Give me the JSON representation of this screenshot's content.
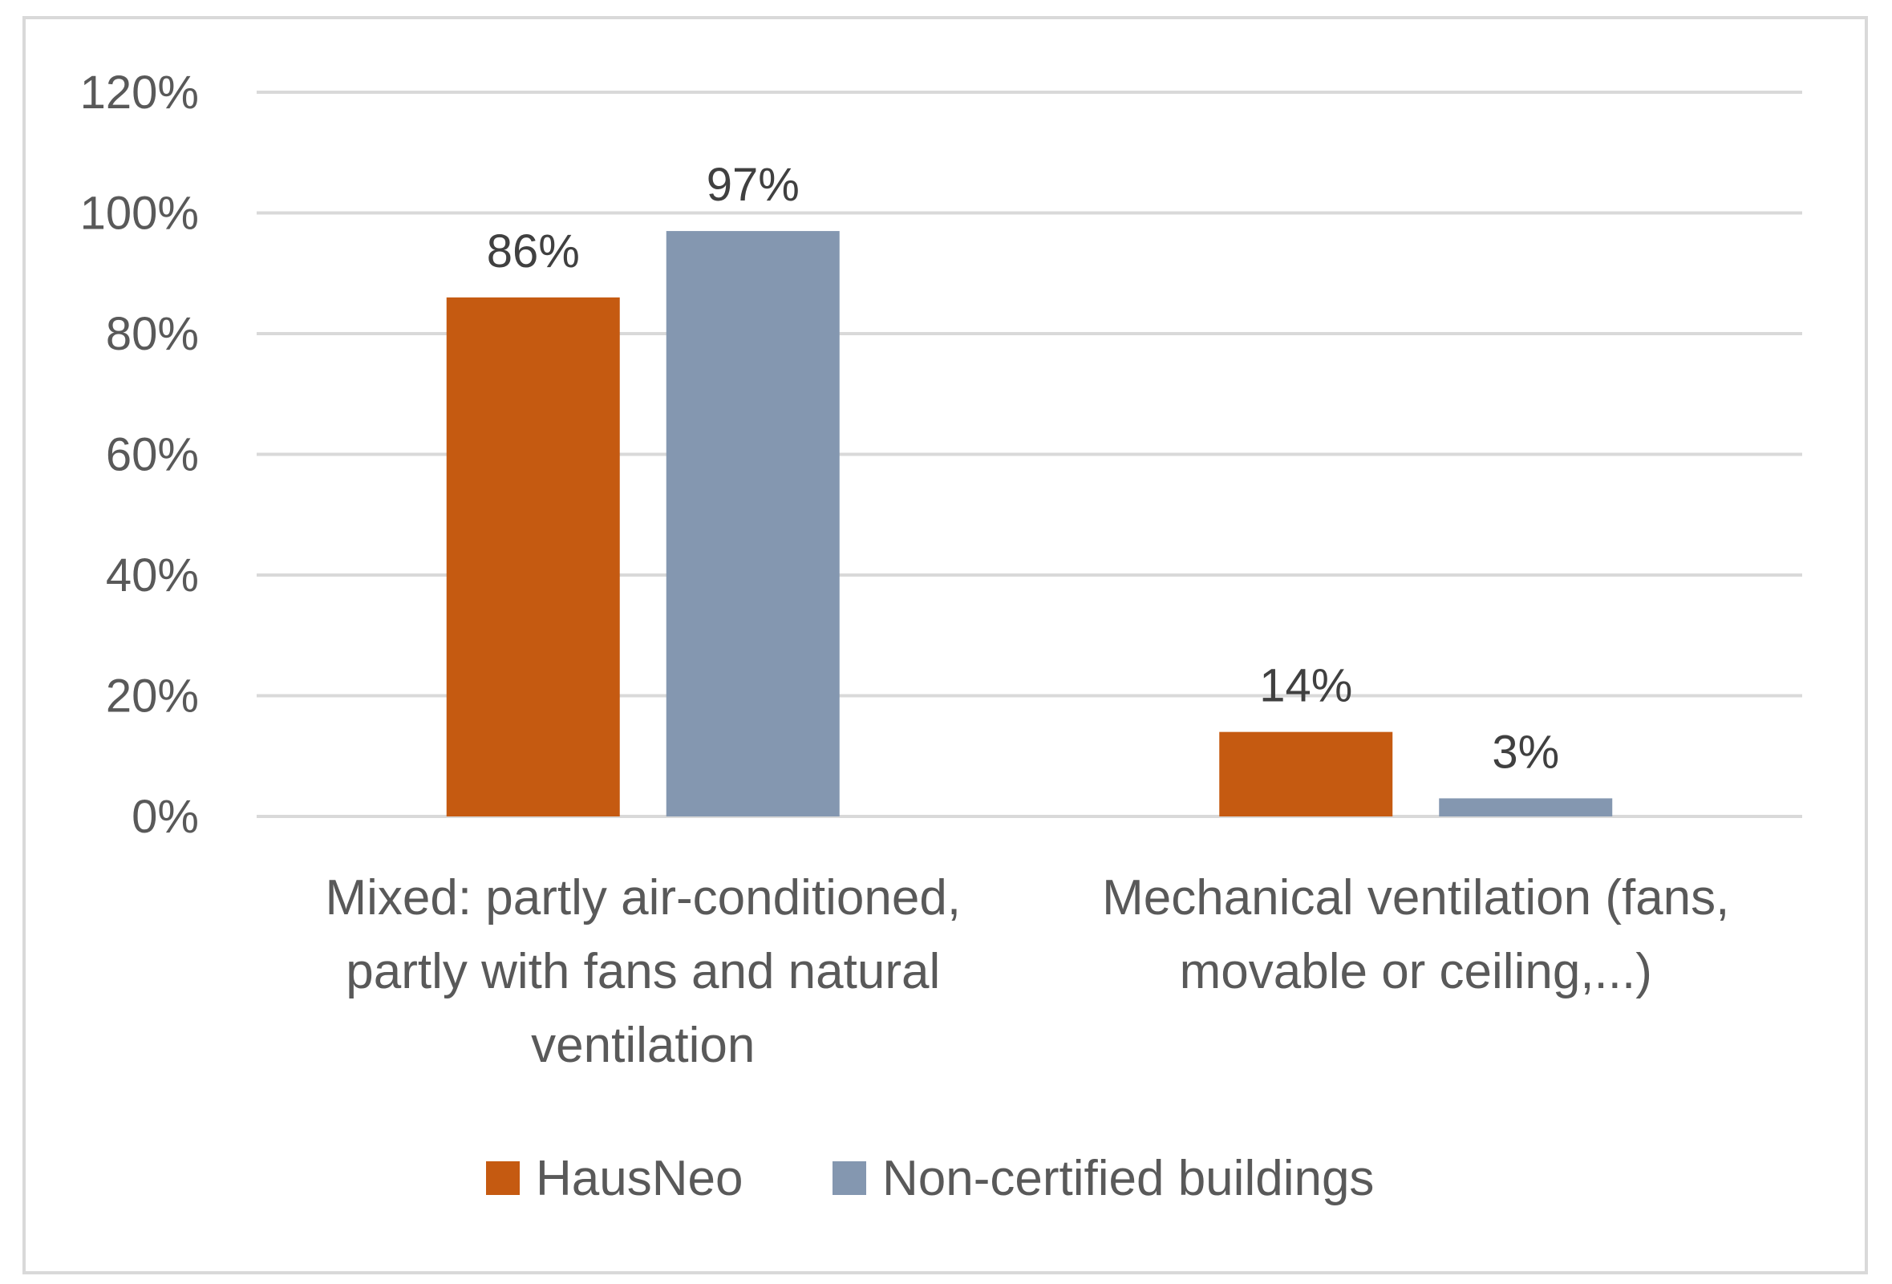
{
  "chart_data": {
    "type": "bar",
    "categories": [
      [
        "Mixed: partly air-conditioned,",
        "partly with fans and natural",
        "ventilation"
      ],
      [
        "Mechanical ventilation (fans,",
        "movable or ceiling,...)"
      ]
    ],
    "series": [
      {
        "name": "HausNeo",
        "values": [
          86,
          14
        ],
        "labels": [
          "86%",
          "14%"
        ],
        "color": "#C55A11"
      },
      {
        "name": "Non-certified buildings",
        "values": [
          97,
          3
        ],
        "labels": [
          "97%",
          "3%"
        ],
        "color": "#8497B0"
      }
    ],
    "y_ticks": [
      0,
      20,
      40,
      60,
      80,
      100,
      120
    ],
    "y_tick_labels": [
      "0%",
      "20%",
      "40%",
      "60%",
      "80%",
      "100%",
      "120%"
    ],
    "ylim": [
      0,
      120
    ],
    "grid": true,
    "legend": "bottom",
    "title": "",
    "xlabel": "",
    "ylabel": ""
  },
  "colors": {
    "gridline": "#D9D9D9",
    "border": "#D9D9D9"
  }
}
